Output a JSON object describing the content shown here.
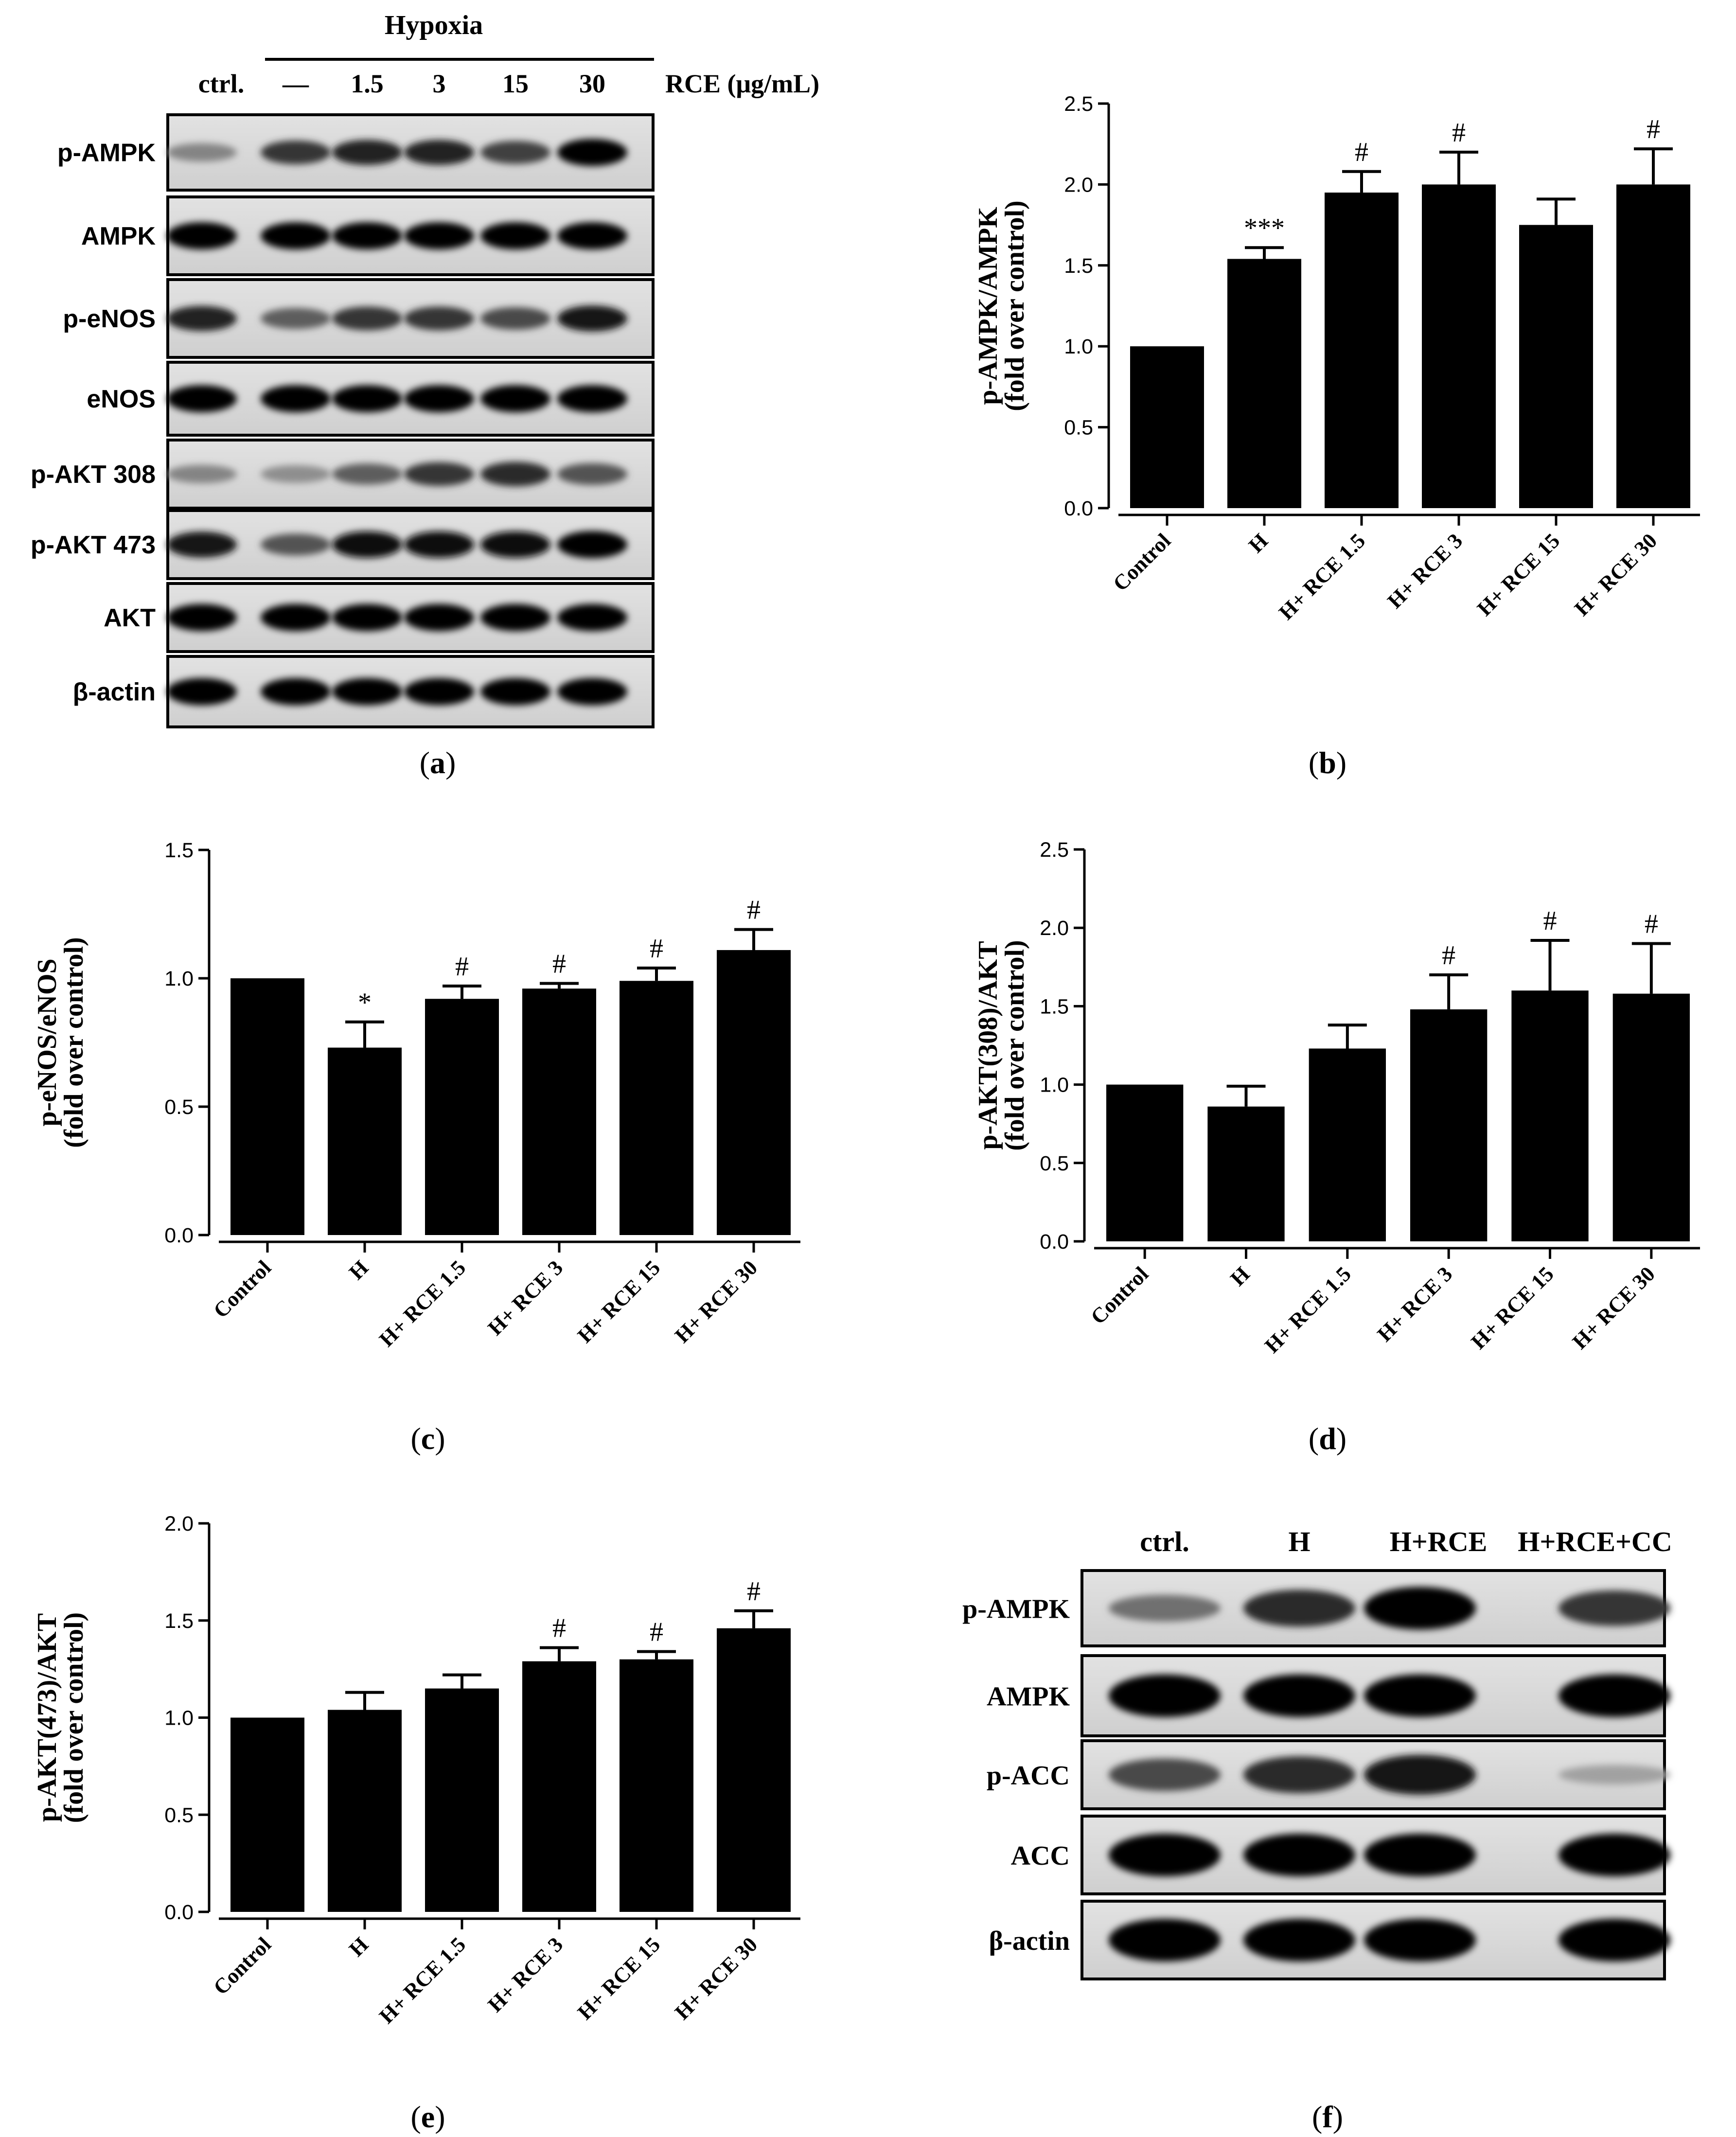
{
  "panel_labels": [
    "a",
    "b",
    "c",
    "d",
    "e",
    "f"
  ],
  "blot_a": {
    "header": "Hypoxia",
    "lanes": [
      "ctrl.",
      "—",
      "1.5",
      "3",
      "15",
      "30"
    ],
    "conc_label": "RCE (μg/mL)",
    "rows": [
      {
        "label": "p-AMPK",
        "intensity": [
          0.35,
          0.75,
          0.85,
          0.85,
          0.7,
          1.0
        ]
      },
      {
        "label": "AMPK",
        "intensity": [
          1,
          1,
          1,
          1,
          1,
          1
        ]
      },
      {
        "label": "p-eNOS",
        "intensity": [
          0.85,
          0.55,
          0.75,
          0.75,
          0.65,
          0.9
        ]
      },
      {
        "label": "eNOS",
        "intensity": [
          1,
          1,
          1,
          1,
          1,
          1
        ]
      },
      {
        "label": "p-AKT 308",
        "intensity": [
          0.35,
          0.3,
          0.55,
          0.75,
          0.8,
          0.6
        ]
      },
      {
        "label": "p-AKT 473",
        "intensity": [
          0.9,
          0.6,
          0.95,
          0.95,
          0.95,
          1.0
        ]
      },
      {
        "label": "AKT",
        "intensity": [
          1,
          1,
          1,
          1,
          1,
          1
        ]
      },
      {
        "label": "β-actin",
        "intensity": [
          1,
          1,
          1,
          1,
          1,
          1
        ]
      }
    ]
  },
  "blot_f": {
    "lanes": [
      "ctrl.",
      "H",
      "H+RCE",
      "H+RCE+CC"
    ],
    "rows": [
      {
        "label": "p-AMPK",
        "intensity": [
          0.45,
          0.8,
          1.0,
          0.75
        ]
      },
      {
        "label": "AMPK",
        "intensity": [
          1,
          1,
          1,
          1
        ]
      },
      {
        "label": "p-ACC",
        "intensity": [
          0.65,
          0.8,
          0.9,
          0.2
        ]
      },
      {
        "label": "ACC",
        "intensity": [
          1,
          1,
          1,
          1
        ]
      },
      {
        "label": "β-actin",
        "intensity": [
          1,
          1,
          1,
          1
        ]
      }
    ]
  },
  "chart_data": [
    {
      "panel": "b",
      "type": "bar",
      "categories": [
        "Control",
        "H",
        "H+ RCE 1.5",
        "H+ RCE 3",
        "H+ RCE 15",
        "H+ RCE 30"
      ],
      "values": [
        1.0,
        1.54,
        1.95,
        2.0,
        1.75,
        2.0
      ],
      "errors": [
        0,
        0.07,
        0.13,
        0.2,
        0.16,
        0.22
      ],
      "annotations": [
        "",
        "***",
        "#",
        "#",
        "",
        "#"
      ],
      "ylabel": [
        "p-AMPK/AMPK",
        "(fold over control)"
      ],
      "ylim": [
        0,
        2.5
      ],
      "yticks": [
        0,
        0.5,
        1.0,
        1.5,
        2.0,
        2.5
      ]
    },
    {
      "panel": "c",
      "type": "bar",
      "categories": [
        "Control",
        "H",
        "H+ RCE 1.5",
        "H+ RCE 3",
        "H+ RCE 15",
        "H+ RCE 30"
      ],
      "values": [
        1.0,
        0.73,
        0.92,
        0.96,
        0.99,
        1.11
      ],
      "errors": [
        0,
        0.1,
        0.05,
        0.02,
        0.05,
        0.08
      ],
      "annotations": [
        "",
        "*",
        "#",
        "#",
        "#",
        "#"
      ],
      "ylabel": [
        "p-eNOS/eNOS",
        "(fold over control)"
      ],
      "ylim": [
        0,
        1.5
      ],
      "yticks": [
        0,
        0.5,
        1.0,
        1.5
      ]
    },
    {
      "panel": "d",
      "type": "bar",
      "categories": [
        "Control",
        "H",
        "H+ RCE 1.5",
        "H+ RCE 3",
        "H+ RCE 15",
        "H+ RCE 30"
      ],
      "values": [
        1.0,
        0.86,
        1.23,
        1.48,
        1.6,
        1.58
      ],
      "errors": [
        0,
        0.13,
        0.15,
        0.22,
        0.32,
        0.32
      ],
      "annotations": [
        "",
        "",
        "",
        "#",
        "#",
        "#"
      ],
      "ylabel": [
        "p-AKT(308)/AKT",
        "(fold over control)"
      ],
      "ylim": [
        0,
        2.5
      ],
      "yticks": [
        0,
        0.5,
        1.0,
        1.5,
        2.0,
        2.5
      ]
    },
    {
      "panel": "e",
      "type": "bar",
      "categories": [
        "Control",
        "H",
        "H+ RCE 1.5",
        "H+ RCE 3",
        "H+ RCE 15",
        "H+ RCE 30"
      ],
      "values": [
        1.0,
        1.04,
        1.15,
        1.29,
        1.3,
        1.46
      ],
      "errors": [
        0,
        0.09,
        0.07,
        0.07,
        0.04,
        0.09
      ],
      "annotations": [
        "",
        "",
        "",
        "#",
        "#",
        "#"
      ],
      "ylabel": [
        "p-AKT(473)/AKT",
        "(fold over control)"
      ],
      "ylim": [
        0,
        2.0
      ],
      "yticks": [
        0,
        0.5,
        1.0,
        1.5,
        2.0
      ]
    }
  ]
}
